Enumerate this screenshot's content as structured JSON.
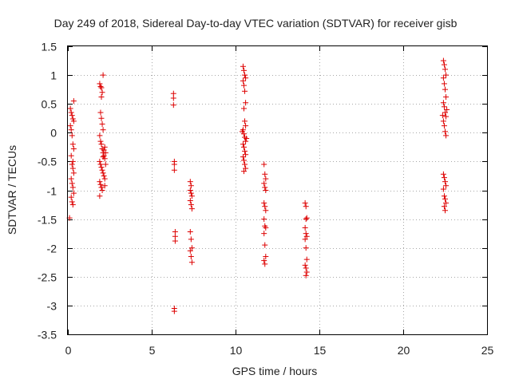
{
  "chart_data": {
    "type": "scatter",
    "title": "Day 249 of 2018, Sidereal Day-to-day VTEC variation (SDTVAR) for receiver gisb",
    "xlabel": "GPS time / hours",
    "ylabel": "SDTVAR / TECUs",
    "xlim": [
      0,
      25
    ],
    "ylim": [
      -3.5,
      1.5
    ],
    "xticks": [
      0,
      5,
      10,
      15,
      20,
      25
    ],
    "yticks": [
      1.5,
      1,
      0.5,
      0,
      -0.5,
      -1,
      -1.5,
      -2,
      -2.5,
      -3,
      -3.5
    ],
    "xtick_labels": [
      "0",
      "5",
      "10",
      "15",
      "20",
      "25"
    ],
    "ytick_labels": [
      "1.5",
      "1",
      "0.5",
      "0",
      "-0.5",
      "-1",
      "-1.5",
      "-2",
      "-2.5",
      "-3",
      "-3.5"
    ],
    "grid": true,
    "marker": "+",
    "color": "#dd0000",
    "series": [
      {
        "name": "SDTVAR",
        "points": [
          [
            0.15,
            0.42
          ],
          [
            0.2,
            0.35
          ],
          [
            0.25,
            0.3
          ],
          [
            0.3,
            0.24
          ],
          [
            0.35,
            0.2
          ],
          [
            0.2,
            0.05
          ],
          [
            0.25,
            -0.05
          ],
          [
            0.3,
            -0.2
          ],
          [
            0.35,
            -0.28
          ],
          [
            0.2,
            -0.4
          ],
          [
            0.25,
            -0.55
          ],
          [
            0.3,
            -0.62
          ],
          [
            0.35,
            -0.7
          ],
          [
            0.2,
            -0.8
          ],
          [
            0.25,
            -0.88
          ],
          [
            0.3,
            -0.95
          ],
          [
            0.35,
            -1.05
          ],
          [
            0.2,
            -1.12
          ],
          [
            0.25,
            -1.2
          ],
          [
            0.3,
            -1.25
          ],
          [
            0.1,
            -1.48
          ],
          [
            0.35,
            0.55
          ],
          [
            0.15,
            0.12
          ],
          [
            0.3,
            -0.5
          ],
          [
            1.9,
            0.85
          ],
          [
            1.95,
            0.8
          ],
          [
            2.0,
            0.78
          ],
          [
            2.05,
            0.7
          ],
          [
            2.0,
            0.62
          ],
          [
            2.1,
            1.0
          ],
          [
            1.95,
            0.35
          ],
          [
            2.0,
            0.25
          ],
          [
            2.05,
            0.15
          ],
          [
            2.1,
            0.05
          ],
          [
            1.9,
            -0.05
          ],
          [
            1.95,
            -0.15
          ],
          [
            2.0,
            -0.2
          ],
          [
            2.05,
            -0.28
          ],
          [
            2.1,
            -0.35
          ],
          [
            2.15,
            -0.4
          ],
          [
            2.2,
            -0.45
          ],
          [
            1.9,
            -0.5
          ],
          [
            1.95,
            -0.55
          ],
          [
            2.0,
            -0.6
          ],
          [
            2.05,
            -0.65
          ],
          [
            2.1,
            -0.7
          ],
          [
            2.15,
            -0.75
          ],
          [
            2.2,
            -0.8
          ],
          [
            1.9,
            -0.85
          ],
          [
            1.95,
            -0.9
          ],
          [
            2.0,
            -0.95
          ],
          [
            2.05,
            -1.0
          ],
          [
            1.9,
            -1.1
          ],
          [
            2.15,
            -0.3
          ],
          [
            2.2,
            -0.25
          ],
          [
            2.25,
            -0.35
          ],
          [
            2.25,
            -0.55
          ],
          [
            2.2,
            -0.92
          ],
          [
            2.1,
            -0.42
          ],
          [
            6.3,
            0.68
          ],
          [
            6.3,
            0.6
          ],
          [
            6.3,
            0.48
          ],
          [
            6.35,
            -0.5
          ],
          [
            6.35,
            -0.55
          ],
          [
            6.35,
            -0.65
          ],
          [
            6.4,
            -1.72
          ],
          [
            6.4,
            -1.8
          ],
          [
            6.4,
            -1.88
          ],
          [
            6.35,
            -3.05
          ],
          [
            6.35,
            -3.1
          ],
          [
            7.3,
            -0.85
          ],
          [
            7.35,
            -0.92
          ],
          [
            7.3,
            -1.0
          ],
          [
            7.35,
            -1.05
          ],
          [
            7.4,
            -1.1
          ],
          [
            7.3,
            -1.18
          ],
          [
            7.35,
            -1.25
          ],
          [
            7.4,
            -1.32
          ],
          [
            7.3,
            -1.72
          ],
          [
            7.35,
            -1.85
          ],
          [
            7.4,
            -2.0
          ],
          [
            7.3,
            -2.05
          ],
          [
            7.35,
            -2.15
          ],
          [
            7.4,
            -2.25
          ],
          [
            10.45,
            1.15
          ],
          [
            10.5,
            1.08
          ],
          [
            10.55,
            1.0
          ],
          [
            10.6,
            0.95
          ],
          [
            10.45,
            0.9
          ],
          [
            10.5,
            0.82
          ],
          [
            10.55,
            0.72
          ],
          [
            10.6,
            0.52
          ],
          [
            10.5,
            0.42
          ],
          [
            10.55,
            0.2
          ],
          [
            10.6,
            0.12
          ],
          [
            10.45,
            0.05
          ],
          [
            10.5,
            -0.02
          ],
          [
            10.55,
            -0.08
          ],
          [
            10.6,
            -0.15
          ],
          [
            10.45,
            -0.2
          ],
          [
            10.5,
            -0.25
          ],
          [
            10.55,
            -0.32
          ],
          [
            10.6,
            -0.38
          ],
          [
            10.45,
            -0.42
          ],
          [
            10.5,
            -0.48
          ],
          [
            10.55,
            -0.55
          ],
          [
            10.6,
            -0.62
          ],
          [
            10.5,
            -0.67
          ],
          [
            10.65,
            -0.1
          ],
          [
            10.4,
            0.02
          ],
          [
            11.7,
            -0.55
          ],
          [
            11.75,
            -0.72
          ],
          [
            11.8,
            -0.8
          ],
          [
            11.7,
            -0.88
          ],
          [
            11.75,
            -0.95
          ],
          [
            11.8,
            -1.0
          ],
          [
            11.7,
            -1.22
          ],
          [
            11.75,
            -1.28
          ],
          [
            11.8,
            -1.35
          ],
          [
            11.7,
            -1.5
          ],
          [
            11.75,
            -1.62
          ],
          [
            11.8,
            -1.65
          ],
          [
            11.7,
            -1.75
          ],
          [
            11.75,
            -1.95
          ],
          [
            11.8,
            -2.15
          ],
          [
            11.7,
            -2.22
          ],
          [
            11.75,
            -2.28
          ],
          [
            14.15,
            -1.22
          ],
          [
            14.2,
            -1.28
          ],
          [
            14.25,
            -1.48
          ],
          [
            14.2,
            -1.5
          ],
          [
            14.15,
            -1.65
          ],
          [
            14.2,
            -1.75
          ],
          [
            14.25,
            -1.8
          ],
          [
            14.15,
            -1.85
          ],
          [
            14.2,
            -2.0
          ],
          [
            14.25,
            -2.2
          ],
          [
            14.15,
            -2.3
          ],
          [
            14.2,
            -2.35
          ],
          [
            14.25,
            -2.42
          ],
          [
            14.2,
            -2.48
          ],
          [
            22.4,
            1.25
          ],
          [
            22.45,
            1.18
          ],
          [
            22.5,
            1.1
          ],
          [
            22.55,
            1.0
          ],
          [
            22.4,
            0.95
          ],
          [
            22.45,
            0.85
          ],
          [
            22.5,
            0.75
          ],
          [
            22.55,
            0.62
          ],
          [
            22.4,
            0.52
          ],
          [
            22.45,
            0.45
          ],
          [
            22.5,
            0.35
          ],
          [
            22.55,
            0.28
          ],
          [
            22.4,
            0.2
          ],
          [
            22.45,
            0.12
          ],
          [
            22.5,
            0.02
          ],
          [
            22.55,
            -0.05
          ],
          [
            22.4,
            -0.72
          ],
          [
            22.45,
            -0.78
          ],
          [
            22.5,
            -0.85
          ],
          [
            22.55,
            -0.92
          ],
          [
            22.4,
            -0.98
          ],
          [
            22.45,
            -1.1
          ],
          [
            22.5,
            -1.15
          ],
          [
            22.55,
            -1.22
          ],
          [
            22.45,
            -1.28
          ],
          [
            22.5,
            -1.35
          ],
          [
            22.6,
            0.4
          ],
          [
            22.35,
            0.3
          ]
        ]
      }
    ]
  }
}
